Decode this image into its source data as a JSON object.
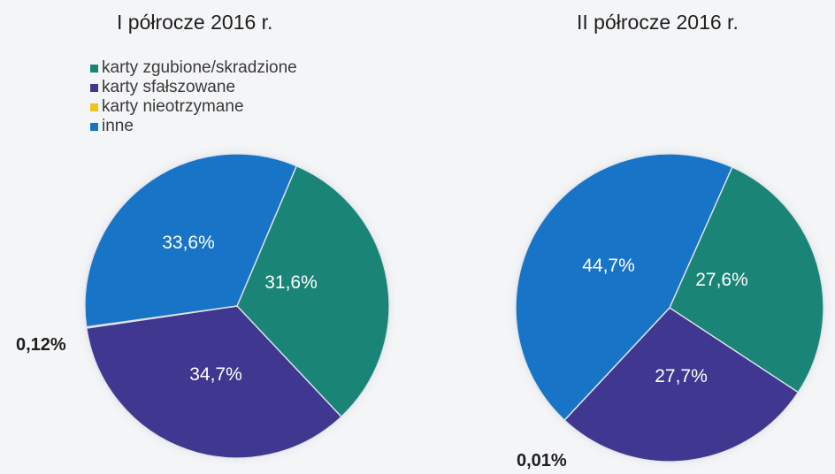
{
  "chart_data": [
    {
      "type": "pie",
      "title": "I półrocze 2016 r.",
      "slices": [
        {
          "name": "karty zgubione/skradzione",
          "value": 31.6,
          "label": "31,6%",
          "color": "#1a8577"
        },
        {
          "name": "karty sfałszowane",
          "value": 34.7,
          "label": "34,7%",
          "color": "#3f3790"
        },
        {
          "name": "karty nieotrzymane",
          "value": 0.12,
          "label": "0,12%",
          "color": "#f2c21b"
        },
        {
          "name": "inne",
          "value": 33.6,
          "label": "33,6%",
          "color": "#1874c7"
        }
      ]
    },
    {
      "type": "pie",
      "title": "II półrocze 2016 r.",
      "slices": [
        {
          "name": "karty zgubione/skradzione",
          "value": 27.6,
          "label": "27,6%",
          "color": "#1a8577"
        },
        {
          "name": "karty sfałszowane",
          "value": 27.7,
          "label": "27,7%",
          "color": "#3f3790"
        },
        {
          "name": "karty nieotrzymane",
          "value": 0.01,
          "label": "0,01%",
          "color": "#f2c21b"
        },
        {
          "name": "inne",
          "value": 44.7,
          "label": "44,7%",
          "color": "#1874c7"
        }
      ]
    }
  ],
  "legend": {
    "items": [
      {
        "label": "karty zgubione/skradzione",
        "color": "#1a8577"
      },
      {
        "label": "karty sfałszowane",
        "color": "#3f3790"
      },
      {
        "label": "karty nieotrzymane",
        "color": "#f2c21b"
      },
      {
        "label": "inne",
        "color": "#1874c7"
      }
    ]
  }
}
